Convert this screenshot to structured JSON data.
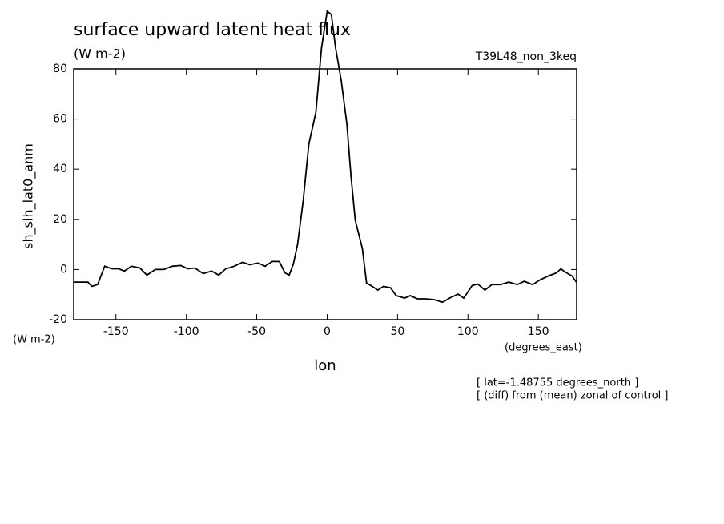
{
  "chart_data": {
    "type": "line",
    "title": "surface upward latent heat flux",
    "subtitle": "(W m-2)",
    "run_label": "T39L48_non_3keq",
    "y_label": "sh_slh_lat0_anm",
    "y_units": "(W m-2)",
    "x_label": "lon",
    "x_units": "(degrees_east)",
    "notes": [
      "[ lat=-1.48755 degrees_north ]",
      "[ (diff) from (mean) zonal of control ]"
    ],
    "color": "#000000",
    "x": [
      -180,
      -175,
      -170,
      -167,
      -163,
      -158,
      -153,
      -148,
      -144,
      -139,
      -133,
      -128,
      -122,
      -116,
      -110,
      -104,
      -99,
      -94,
      -88,
      -82,
      -77,
      -72,
      -66,
      -60,
      -55,
      -49,
      -44,
      -39,
      -34,
      -30,
      -27,
      -24,
      -21,
      -17,
      -13,
      -8,
      -4,
      0,
      3,
      6,
      10,
      14,
      17,
      20,
      25,
      28,
      32,
      36,
      40,
      45,
      49,
      55,
      59,
      64,
      70,
      76,
      82,
      87,
      93,
      97,
      103,
      107,
      112,
      117,
      123,
      129,
      135,
      140,
      146,
      151,
      157,
      163,
      166,
      169,
      174,
      177
    ],
    "values": [
      -5,
      -5,
      -5,
      -6.7,
      -6,
      1.3,
      0.3,
      0.3,
      -0.6,
      1.3,
      0.6,
      -2.2,
      0,
      0,
      1.3,
      1.6,
      0.3,
      0.6,
      -1.6,
      -0.6,
      -2.2,
      0.3,
      1.3,
      2.9,
      1.9,
      2.6,
      1.3,
      3.2,
      3.2,
      -1.3,
      -2.2,
      2.2,
      10,
      27.6,
      50,
      62.7,
      88.3,
      103,
      101.7,
      88.3,
      75.5,
      58,
      37,
      19.6,
      8.4,
      -5.4,
      -6.7,
      -8.2,
      -6.7,
      -7.3,
      -10.4,
      -11.4,
      -10.4,
      -11.7,
      -11.7,
      -12,
      -13,
      -11.4,
      -9.8,
      -11.4,
      -6.4,
      -5.8,
      -8.2,
      -6,
      -6,
      -5,
      -6,
      -4.7,
      -6,
      -4.2,
      -2.6,
      -1.3,
      0.3,
      -1,
      -2.6,
      -5
    ],
    "xlim": [
      -180,
      177.2
    ],
    "ylim": [
      -20,
      80
    ],
    "xticks": [
      -150,
      -100,
      -50,
      0,
      50,
      100,
      150
    ],
    "yticks": [
      -20,
      0,
      20,
      40,
      60,
      80
    ]
  }
}
